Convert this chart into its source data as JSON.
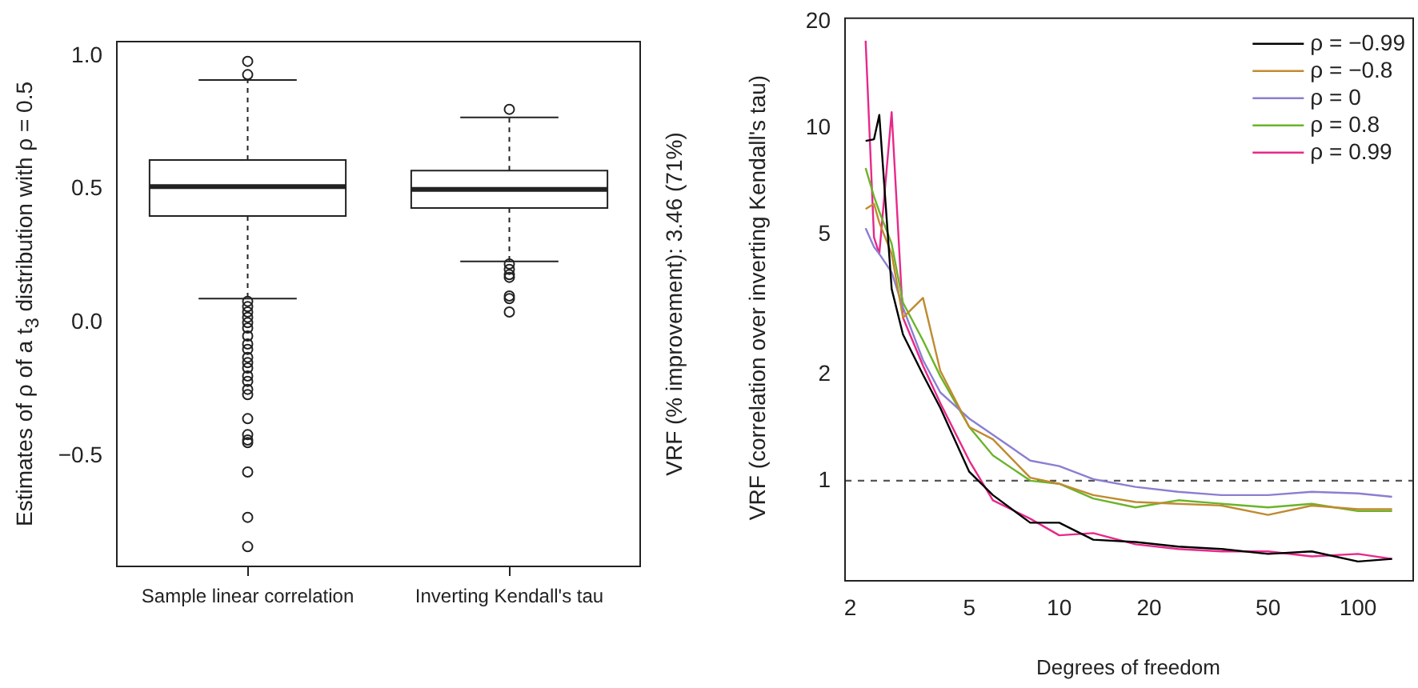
{
  "chart_data": [
    {
      "type": "box",
      "ylabel": "Estimates of ρ of a t$_{3}$ distribution with ρ = 0.5",
      "categories": [
        "Sample linear correlation",
        "Inverting Kendall's tau"
      ],
      "boxes": [
        {
          "low": 0.09,
          "q1": 0.4,
          "median": 0.51,
          "q3": 0.61,
          "high": 0.91,
          "outliers": [
            0.98,
            0.93,
            0.08,
            0.06,
            0.04,
            0.02,
            0,
            -0.02,
            -0.05,
            -0.08,
            -0.1,
            -0.13,
            -0.15,
            -0.17,
            -0.2,
            -0.22,
            -0.25,
            -0.27,
            -0.36,
            -0.42,
            -0.44,
            -0.45,
            -0.56,
            -0.73,
            -0.84
          ]
        },
        {
          "low": 0.23,
          "q1": 0.43,
          "median": 0.5,
          "q3": 0.57,
          "high": 0.77,
          "outliers": [
            0.8,
            0.22,
            0.2,
            0.18,
            0.17,
            0.1,
            0.09,
            0.04
          ]
        }
      ],
      "ylim": [
        -0.914,
        1.054
      ],
      "yticks": [
        {
          "value": -0.5,
          "label": "−0.5"
        },
        {
          "value": 0,
          "label": "0.0"
        },
        {
          "value": 0.5,
          "label": "0.5"
        },
        {
          "value": 1,
          "label": "1.0"
        }
      ],
      "annotations": [
        "VRF (% improvement):  3.46 (71%)"
      ],
      "grid": false,
      "legend": false
    },
    {
      "type": "line",
      "xlabel": "Degrees of freedom",
      "ylabel": "VRF (correlation over inverting Kendall's tau)",
      "log": "xy",
      "x": [
        2.25,
        2.4,
        2.5,
        2.75,
        3,
        3.5,
        4,
        5,
        6,
        8,
        10,
        13,
        18,
        25,
        35,
        50,
        70,
        100,
        130
      ],
      "series": [
        {
          "name": "ρ = −0.99",
          "color": "#000000",
          "values": [
            9.2,
            9.3,
            10.9,
            3.5,
            2.6,
            2.0,
            1.61,
            1.06,
            0.91,
            0.76,
            0.76,
            0.68,
            0.67,
            0.65,
            0.64,
            0.62,
            0.63,
            0.59,
            0.6
          ]
        },
        {
          "name": "ρ = −0.8",
          "color": "#c08a30",
          "values": [
            5.9,
            6.1,
            5.4,
            4.4,
            2.9,
            3.3,
            2.05,
            1.42,
            1.31,
            1.02,
            0.98,
            0.91,
            0.87,
            0.86,
            0.85,
            0.8,
            0.85,
            0.83,
            0.83
          ]
        },
        {
          "name": "ρ = 0",
          "color": "#8a7fd0",
          "values": [
            5.2,
            4.6,
            4.4,
            3.9,
            3.1,
            2.2,
            1.78,
            1.5,
            1.35,
            1.14,
            1.1,
            1.01,
            0.96,
            0.93,
            0.91,
            0.91,
            0.93,
            0.92,
            0.9
          ]
        },
        {
          "name": "ρ = 0.8",
          "color": "#6ab42a",
          "values": [
            7.7,
            6.4,
            5.8,
            4.7,
            3.2,
            2.5,
            1.98,
            1.42,
            1.18,
            1.0,
            0.98,
            0.89,
            0.84,
            0.88,
            0.86,
            0.84,
            0.86,
            0.82,
            0.82
          ]
        },
        {
          "name": "ρ = 0.99",
          "color": "#e8288a",
          "values": [
            17.7,
            4.9,
            4.4,
            11.1,
            2.9,
            2.12,
            1.66,
            1.14,
            0.88,
            0.78,
            0.7,
            0.71,
            0.66,
            0.64,
            0.63,
            0.63,
            0.61,
            0.62,
            0.6
          ]
        }
      ],
      "xlim": [
        1.92,
        153
      ],
      "xticks": [
        2,
        5,
        10,
        20,
        50,
        100
      ],
      "ylim": [
        0.52,
        20.5
      ],
      "yticks": [
        1,
        2,
        5,
        10,
        20
      ],
      "ref_lines": [
        {
          "axis": "y",
          "value": 1,
          "color": "#555555",
          "line_style": "dashed"
        }
      ],
      "grid": false,
      "legend": "top right"
    }
  ]
}
